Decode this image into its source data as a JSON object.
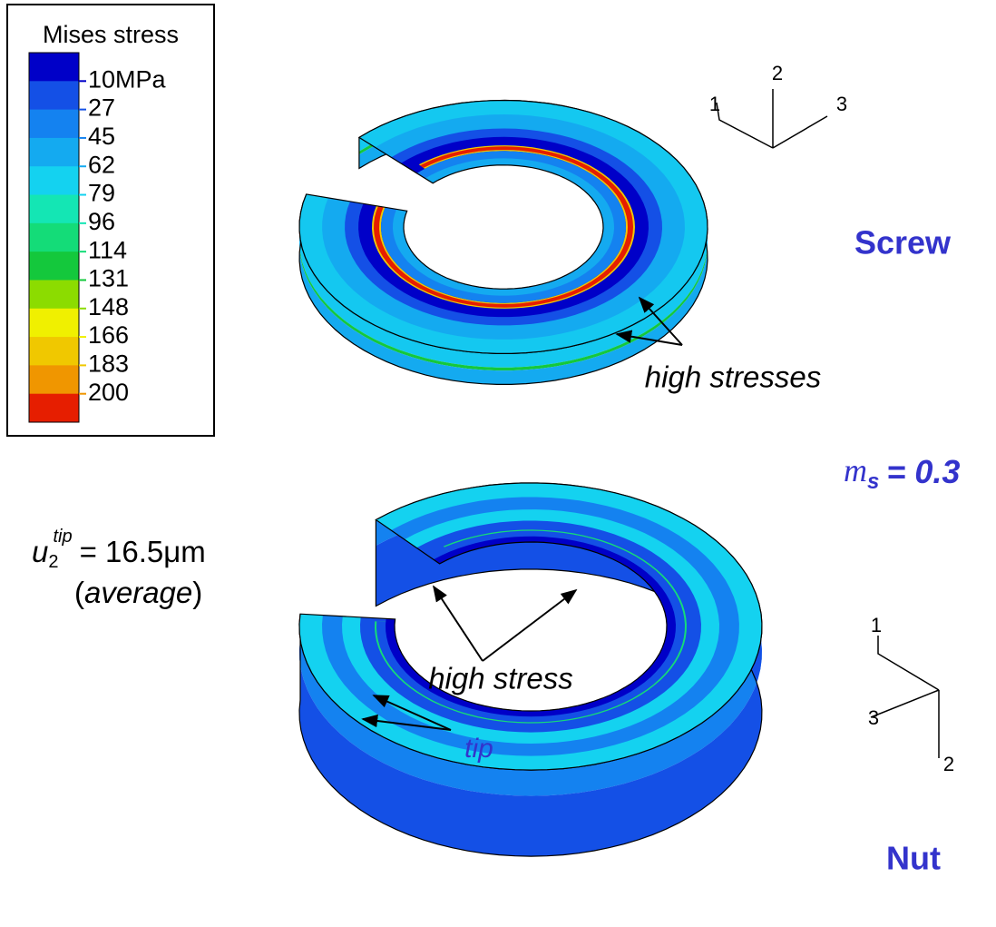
{
  "legend": {
    "title": "Mises stress",
    "labels": [
      "10MPa",
      "27",
      "45",
      "62",
      "79",
      "96",
      "114",
      "131",
      "148",
      "166",
      "183",
      "200"
    ],
    "colors": [
      "#0000c8",
      "#1450e6",
      "#1482f0",
      "#14aaf0",
      "#14d2f0",
      "#14e6b4",
      "#14dc78",
      "#14c83c",
      "#8cdc00",
      "#f0f000",
      "#f0c800",
      "#f09600",
      "#e61e00"
    ]
  },
  "screw": {
    "label": "Screw",
    "annotation": "high stresses",
    "axes": [
      "1",
      "2",
      "3"
    ]
  },
  "nut": {
    "label": "Nut",
    "annotation": "high stress",
    "tip_label": "tip",
    "axes": [
      "1",
      "2",
      "3"
    ]
  },
  "friction": {
    "symbol": "m",
    "subscript": "s",
    "value": "= 0.3"
  },
  "displacement": {
    "symbol": "u",
    "subscript": "2",
    "superscript": "tip",
    "value": "= 16.5μm",
    "note_open": "(",
    "note": "average",
    "note_close": ")"
  }
}
